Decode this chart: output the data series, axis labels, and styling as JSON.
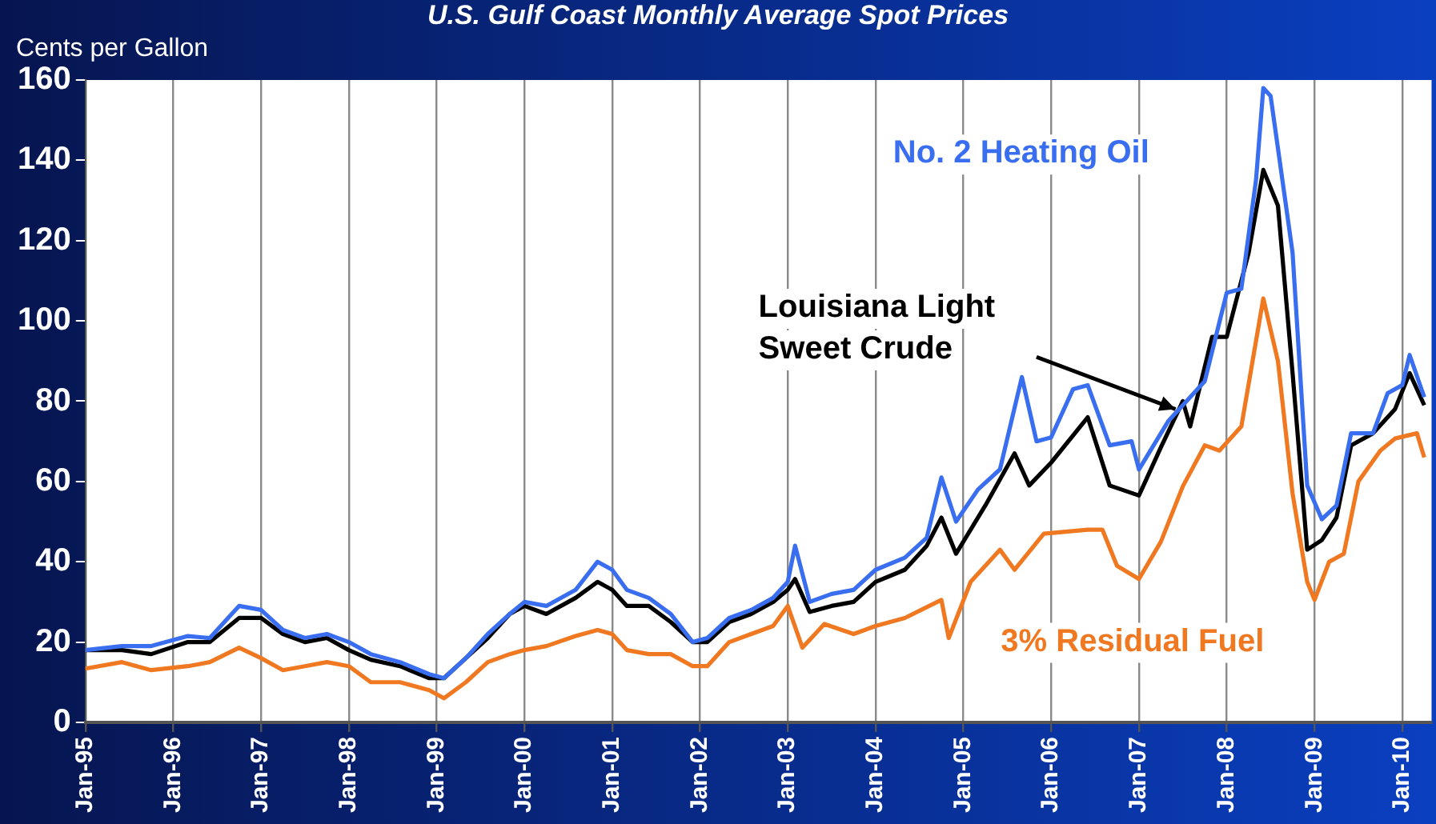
{
  "chart_data": {
    "type": "line",
    "title": "U.S. Gulf Coast Monthly Average Spot Prices",
    "ylabel": "Cents per Gallon",
    "xlim": [
      "1995-01",
      "2010-05"
    ],
    "xticks": [
      {
        "value": "1995-01",
        "label": "Jan-95"
      },
      {
        "value": "1996-01",
        "label": "Jan-96"
      },
      {
        "value": "1997-01",
        "label": "Jan-97"
      },
      {
        "value": "1998-01",
        "label": "Jan-98"
      },
      {
        "value": "1999-01",
        "label": "Jan-99"
      },
      {
        "value": "2000-01",
        "label": "Jan-00"
      },
      {
        "value": "2001-01",
        "label": "Jan-01"
      },
      {
        "value": "2002-01",
        "label": "Jan-02"
      },
      {
        "value": "2003-01",
        "label": "Jan-03"
      },
      {
        "value": "2004-01",
        "label": "Jan-04"
      },
      {
        "value": "2005-01",
        "label": "Jan-05"
      },
      {
        "value": "2006-01",
        "label": "Jan-06"
      },
      {
        "value": "2007-01",
        "label": "Jan-07"
      },
      {
        "value": "2008-01",
        "label": "Jan-08"
      },
      {
        "value": "2009-01",
        "label": "Jan-09"
      },
      {
        "value": "2010-01",
        "label": "Jan-10"
      }
    ],
    "ylim": [
      0,
      160
    ],
    "yticks": [
      0,
      20,
      40,
      60,
      80,
      100,
      120,
      140,
      160
    ],
    "grid": "x",
    "marker": "none",
    "series": [
      {
        "name": "No. 2 Heating Oil",
        "color": "#3a6ef0",
        "x": [
          "1995-01",
          "1995-06",
          "1995-10",
          "1996-03",
          "1996-06",
          "1996-10",
          "1997-01",
          "1997-04",
          "1997-07",
          "1997-10",
          "1998-01",
          "1998-04",
          "1998-08",
          "1998-12",
          "1999-02",
          "1999-05",
          "1999-08",
          "1999-11",
          "2000-01",
          "2000-04",
          "2000-08",
          "2000-11",
          "2001-01",
          "2001-03",
          "2001-06",
          "2001-09",
          "2001-12",
          "2002-02",
          "2002-05",
          "2002-08",
          "2002-11",
          "2003-01",
          "2003-02",
          "2003-04",
          "2003-07",
          "2003-10",
          "2004-01",
          "2004-05",
          "2004-08",
          "2004-10",
          "2004-12",
          "2005-03",
          "2005-06",
          "2005-09",
          "2005-11",
          "2006-01",
          "2006-04",
          "2006-06",
          "2006-09",
          "2006-12",
          "2007-01",
          "2007-05",
          "2007-10",
          "2008-01",
          "2008-03",
          "2008-05",
          "2008-06",
          "2008-07",
          "2008-10",
          "2008-12",
          "2009-02",
          "2009-04",
          "2009-06",
          "2009-09",
          "2009-11",
          "2010-01",
          "2010-02",
          "2010-04"
        ],
        "values": [
          18,
          19,
          19,
          21.5,
          21,
          29,
          28,
          23,
          21,
          22,
          20,
          17,
          15,
          12,
          11,
          16,
          22,
          27,
          30,
          29,
          33,
          40,
          38,
          33,
          31,
          27,
          20,
          21,
          26,
          28,
          31,
          35,
          44,
          30,
          32,
          33,
          38,
          41,
          46,
          61,
          50,
          58,
          63,
          86,
          70,
          71,
          83,
          84,
          69,
          70,
          63,
          75,
          85,
          107,
          108,
          135,
          158,
          156,
          117,
          59,
          50.6,
          54,
          72,
          72,
          82,
          84,
          91.5,
          81
        ]
      },
      {
        "name": "Louisiana Light Sweet Crude",
        "color": "#000000",
        "x": [
          "1995-01",
          "1995-06",
          "1995-10",
          "1996-03",
          "1996-06",
          "1996-10",
          "1997-01",
          "1997-04",
          "1997-07",
          "1997-10",
          "1998-01",
          "1998-04",
          "1998-08",
          "1998-12",
          "1999-02",
          "1999-05",
          "1999-08",
          "1999-11",
          "2000-01",
          "2000-04",
          "2000-08",
          "2000-11",
          "2001-01",
          "2001-03",
          "2001-06",
          "2001-09",
          "2001-12",
          "2002-02",
          "2002-05",
          "2002-08",
          "2002-11",
          "2003-01",
          "2003-02",
          "2003-04",
          "2003-07",
          "2003-10",
          "2004-01",
          "2004-05",
          "2004-08",
          "2004-10",
          "2004-12",
          "2005-04",
          "2005-08",
          "2005-10",
          "2006-01",
          "2006-06",
          "2006-09",
          "2007-01",
          "2007-04",
          "2007-07",
          "2007-08",
          "2007-11",
          "2008-01",
          "2008-04",
          "2008-06",
          "2008-08",
          "2008-10",
          "2008-12",
          "2009-02",
          "2009-04",
          "2009-06",
          "2009-09",
          "2009-12",
          "2010-02",
          "2010-04"
        ],
        "values": [
          18,
          18,
          17,
          20,
          20,
          26,
          26,
          22,
          20,
          21,
          18,
          15.6,
          14,
          11,
          11,
          16,
          21,
          27,
          29,
          27,
          31,
          35,
          33,
          29,
          29,
          25,
          20,
          20,
          25,
          27,
          30,
          33,
          35.7,
          27.5,
          29,
          30,
          35,
          38,
          44,
          51,
          42,
          54,
          67,
          59,
          64.7,
          76,
          59,
          56.5,
          68.5,
          80,
          73.7,
          96,
          96,
          117,
          137.6,
          128.7,
          87,
          43,
          45.4,
          51,
          69,
          72,
          78,
          87,
          79
        ]
      },
      {
        "name": "3% Residual Fuel",
        "color": "#f07820",
        "x": [
          "1995-01",
          "1995-06",
          "1995-10",
          "1996-03",
          "1996-06",
          "1996-10",
          "1997-01",
          "1997-04",
          "1997-07",
          "1997-10",
          "1998-01",
          "1998-04",
          "1998-08",
          "1998-12",
          "1999-02",
          "1999-05",
          "1999-08",
          "1999-11",
          "2000-01",
          "2000-04",
          "2000-08",
          "2000-11",
          "2001-01",
          "2001-03",
          "2001-06",
          "2001-09",
          "2001-12",
          "2002-02",
          "2002-05",
          "2002-08",
          "2002-11",
          "2003-01",
          "2003-03",
          "2003-06",
          "2003-10",
          "2004-01",
          "2004-05",
          "2004-10",
          "2004-11",
          "2005-02",
          "2005-06",
          "2005-08",
          "2005-12",
          "2006-06",
          "2006-08",
          "2006-10",
          "2007-01",
          "2007-04",
          "2007-07",
          "2007-10",
          "2007-12",
          "2008-03",
          "2008-06",
          "2008-08",
          "2008-10",
          "2008-12",
          "2009-01",
          "2009-03",
          "2009-05",
          "2009-07",
          "2009-10",
          "2009-12",
          "2010-03",
          "2010-04"
        ],
        "values": [
          13.4,
          15,
          13,
          14,
          15,
          18.6,
          16,
          13,
          14,
          15,
          14,
          10,
          10,
          8,
          6,
          10,
          15,
          17,
          18,
          19,
          21.5,
          23,
          22,
          18,
          17,
          17,
          14,
          14,
          20,
          22,
          24,
          29,
          18.6,
          24.5,
          22,
          24,
          26,
          30.5,
          21,
          35,
          43,
          38,
          47,
          48,
          48,
          39,
          35.7,
          45,
          58.8,
          69,
          67.7,
          73.7,
          105.6,
          90,
          57,
          35,
          30.5,
          40,
          42,
          60,
          67.7,
          70.7,
          72,
          66
        ]
      }
    ]
  }
}
